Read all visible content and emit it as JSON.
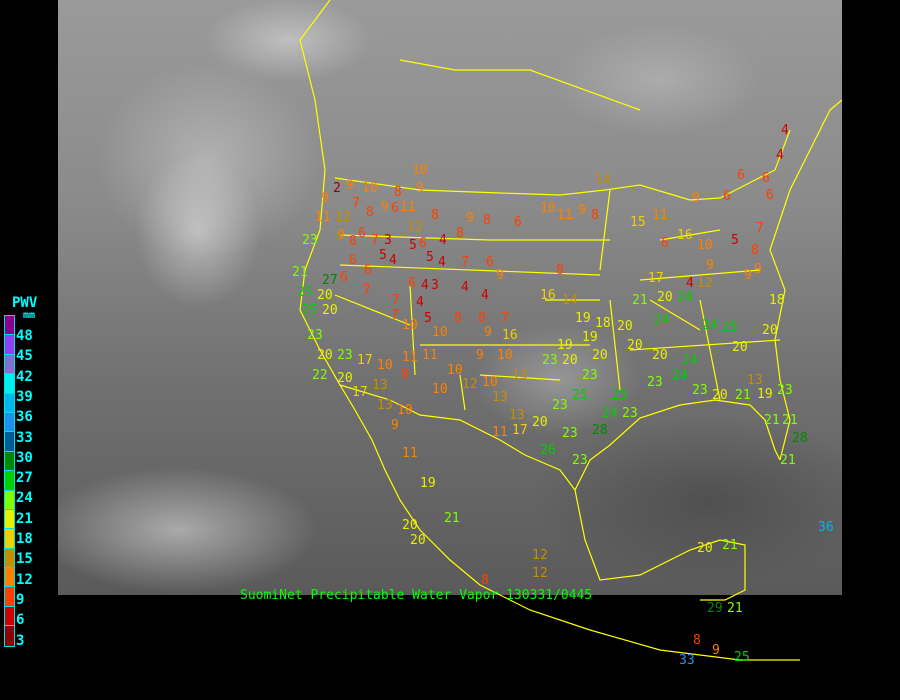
{
  "title": "SuomiNet Precipitable Water Vapor 130331/0445",
  "legend": {
    "title": "PWV",
    "unit": "mm",
    "labels": [
      "48",
      "45",
      "42",
      "39",
      "36",
      "33",
      "30",
      "27",
      "24",
      "21",
      "18",
      "15",
      "12",
      "9",
      "6",
      "3"
    ],
    "colors": [
      "#8c008c",
      "#9040f0",
      "#8070d0",
      "#00f0f0",
      "#00b8e8",
      "#2090f0",
      "#005c98",
      "#008800",
      "#00d000",
      "#80ff00",
      "#e8f000",
      "#f0d000",
      "#c88c00",
      "#ff8000",
      "#ff4000",
      "#d00000",
      "#900000"
    ]
  },
  "boundary_color": "#ffff00",
  "stations": [
    "2",
    "9",
    "10",
    "8",
    "10",
    "11",
    "9",
    "12",
    "7",
    "8",
    "9",
    "6",
    "11",
    "12",
    "9",
    "8",
    "9",
    "8",
    "6",
    "10",
    "11",
    "9",
    "8",
    "9",
    "8",
    "6",
    "7",
    "3",
    "6",
    "5",
    "4",
    "6",
    "5",
    "6",
    "4",
    "8",
    "5",
    "4",
    "7",
    "6",
    "9",
    "6",
    "7",
    "7",
    "6",
    "4",
    "3",
    "4",
    "7",
    "4",
    "4",
    "8",
    "10",
    "5",
    "10",
    "8",
    "8",
    "7",
    "9",
    "16",
    "16",
    "14",
    "19",
    "19",
    "11",
    "11",
    "10",
    "9",
    "10",
    "10",
    "12",
    "10",
    "13",
    "13",
    "13",
    "11",
    "17",
    "20",
    "23",
    "26",
    "23",
    "28",
    "23",
    "21",
    "25",
    "20",
    "27",
    "25",
    "20",
    "23",
    "20",
    "23",
    "22",
    "20",
    "17",
    "10",
    "8",
    "17",
    "13",
    "13",
    "10",
    "9",
    "11",
    "19",
    "20",
    "20",
    "21",
    "12",
    "12",
    "8",
    "14",
    "9",
    "6",
    "6",
    "6",
    "4",
    "4",
    "6",
    "15",
    "11",
    "16",
    "6",
    "10",
    "5",
    "8",
    "7",
    "9",
    "9",
    "9",
    "4",
    "12",
    "17",
    "20",
    "21",
    "24",
    "24",
    "24",
    "25",
    "20",
    "20",
    "18",
    "24",
    "20",
    "20",
    "19",
    "18",
    "20",
    "20",
    "20",
    "23",
    "23",
    "25",
    "23",
    "25",
    "24",
    "23",
    "23",
    "24",
    "23",
    "20",
    "21",
    "13",
    "19",
    "23",
    "21",
    "21",
    "28",
    "21",
    "21",
    "20",
    "29",
    "21",
    "8",
    "9",
    "25",
    "33",
    "36"
  ]
}
